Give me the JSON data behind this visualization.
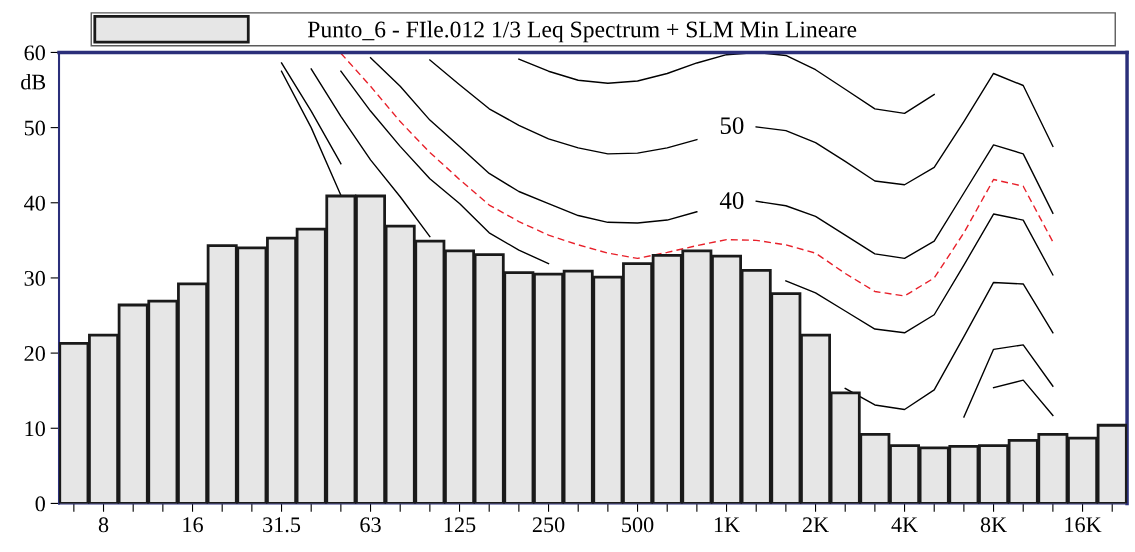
{
  "chart_data": {
    "type": "bar",
    "categories": [
      null,
      "8",
      null,
      null,
      "16",
      null,
      null,
      "31.5",
      null,
      null,
      "63",
      null,
      null,
      "125",
      null,
      null,
      "250",
      null,
      null,
      "500",
      null,
      null,
      "1K",
      null,
      null,
      "2K",
      null,
      null,
      "4K",
      null,
      null,
      "8K",
      null,
      null,
      "16K",
      null
    ],
    "ylabel": "dB",
    "ylim": [
      0,
      60
    ],
    "yticks": [
      0,
      10,
      20,
      30,
      40,
      50,
      60
    ],
    "grid": false,
    "legend": "top",
    "series": [
      {
        "name": "Punto_6 - FIle.012 1/3 Leq Spectrum + SLM Min Lineare",
        "color": "#e6e6e6",
        "values": [
          21.3,
          22.4,
          26.4,
          26.9,
          29.2,
          34.3,
          34.0,
          35.3,
          36.5,
          40.9,
          40.9,
          36.9,
          34.9,
          33.6,
          33.1,
          30.7,
          30.5,
          30.9,
          30.1,
          31.9,
          33.0,
          33.6,
          32.9,
          31.0,
          27.9,
          22.4,
          14.7,
          9.2,
          7.7,
          7.4,
          7.6,
          7.7,
          8.4,
          9.2,
          8.7,
          10.4
        ]
      },
      {
        "type": "line",
        "color": "#000000",
        "line_style": "solid",
        "values": [
          null,
          null,
          null,
          null,
          null,
          null,
          null,
          null,
          null,
          null,
          null,
          null,
          null,
          null,
          null,
          59.1,
          57.5,
          56.3,
          55.9,
          56.2,
          57.2,
          58.6,
          59.7,
          60.0,
          59.6,
          57.7,
          55.1,
          52.5,
          51.9,
          54.4,
          null,
          null,
          null,
          null,
          null,
          null
        ]
      },
      {
        "type": "line",
        "color": "#000000",
        "line_style": "solid",
        "values": [
          null,
          null,
          null,
          null,
          null,
          null,
          null,
          null,
          null,
          null,
          null,
          null,
          59.0,
          55.7,
          52.5,
          50.3,
          48.5,
          47.3,
          46.5,
          46.6,
          47.3,
          48.4,
          null,
          50.1,
          49.6,
          48.0,
          45.5,
          42.9,
          42.4,
          44.7,
          50.8,
          57.2,
          55.6,
          47.5,
          null,
          null
        ]
      },
      {
        "type": "line",
        "color": "#000000",
        "line_style": "solid",
        "values": [
          null,
          null,
          null,
          null,
          null,
          null,
          null,
          null,
          null,
          null,
          59.3,
          55.5,
          51.0,
          47.5,
          43.9,
          41.5,
          39.9,
          38.3,
          37.4,
          37.3,
          37.7,
          38.8,
          null,
          40.2,
          39.6,
          38.2,
          35.7,
          33.2,
          32.6,
          34.9,
          41.3,
          47.7,
          46.5,
          38.6,
          null,
          null
        ]
      },
      {
        "type": "line",
        "color": "#e8202a",
        "line_style": "dashed",
        "values": [
          null,
          null,
          null,
          null,
          null,
          null,
          null,
          null,
          null,
          59.9,
          55.5,
          50.8,
          46.7,
          43.1,
          39.7,
          37.5,
          35.7,
          34.4,
          33.3,
          32.6,
          33.4,
          34.3,
          35.1,
          35.0,
          34.4,
          33.3,
          30.6,
          28.2,
          27.6,
          30.0,
          36.0,
          43.1,
          42.2,
          34.8,
          null,
          null
        ]
      },
      {
        "type": "line",
        "color": "#000000",
        "line_style": "solid",
        "values": [
          null,
          null,
          null,
          null,
          null,
          null,
          null,
          null,
          null,
          57.5,
          52.2,
          47.5,
          43.2,
          39.9,
          36.0,
          33.7,
          31.9,
          null,
          null,
          null,
          null,
          null,
          null,
          null,
          29.6,
          28.0,
          25.6,
          23.2,
          22.7,
          25.1,
          31.7,
          38.5,
          37.7,
          30.4,
          null,
          null
        ]
      },
      {
        "type": "line",
        "color": "#000000",
        "line_style": "solid",
        "values": [
          null,
          null,
          null,
          null,
          null,
          null,
          null,
          null,
          57.8,
          51.5,
          45.7,
          40.8,
          35.5,
          null,
          null,
          null,
          null,
          null,
          null,
          null,
          null,
          null,
          null,
          null,
          null,
          null,
          15.3,
          13.1,
          12.5,
          15.1,
          22.2,
          29.4,
          29.2,
          22.7,
          null,
          null
        ]
      },
      {
        "type": "line",
        "color": "#000000",
        "line_style": "solid",
        "values": [
          null,
          null,
          null,
          null,
          null,
          null,
          null,
          58.6,
          52.2,
          45.2,
          null,
          null,
          null,
          null,
          null,
          null,
          null,
          null,
          null,
          null,
          null,
          null,
          null,
          null,
          null,
          null,
          null,
          null,
          null,
          null,
          11.5,
          20.5,
          21.1,
          15.6,
          null,
          null
        ]
      },
      {
        "type": "line",
        "color": "#000000",
        "line_style": "solid",
        "values": [
          null,
          null,
          null,
          null,
          null,
          null,
          null,
          57.5,
          50.0,
          41.0,
          null,
          null,
          null,
          null,
          null,
          null,
          null,
          null,
          null,
          null,
          null,
          null,
          null,
          null,
          null,
          null,
          null,
          null,
          null,
          null,
          null,
          15.4,
          16.4,
          11.7,
          null,
          null
        ]
      }
    ],
    "annotations": [
      "50",
      "40"
    ]
  }
}
